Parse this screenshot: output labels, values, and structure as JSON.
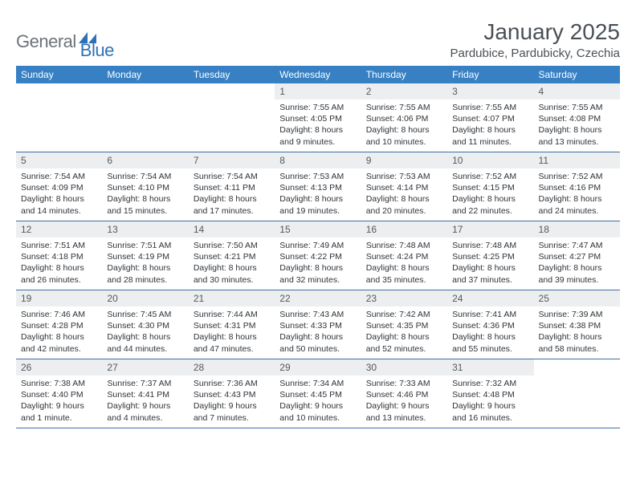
{
  "logo": {
    "general": "General",
    "blue": "Blue"
  },
  "title": "January 2025",
  "location": "Pardubice, Pardubicky, Czechia",
  "colors": {
    "header_bg": "#3680c3",
    "header_text": "#ffffff",
    "date_bg": "#edeeef",
    "border": "#3b6fa5",
    "logo_gray": "#6c737a",
    "logo_blue": "#2f71b8"
  },
  "day_names": [
    "Sunday",
    "Monday",
    "Tuesday",
    "Wednesday",
    "Thursday",
    "Friday",
    "Saturday"
  ],
  "weeks": [
    [
      null,
      null,
      null,
      {
        "n": "1",
        "sr": "7:55 AM",
        "ss": "4:05 PM",
        "dl": "8 hours and 9 minutes."
      },
      {
        "n": "2",
        "sr": "7:55 AM",
        "ss": "4:06 PM",
        "dl": "8 hours and 10 minutes."
      },
      {
        "n": "3",
        "sr": "7:55 AM",
        "ss": "4:07 PM",
        "dl": "8 hours and 11 minutes."
      },
      {
        "n": "4",
        "sr": "7:55 AM",
        "ss": "4:08 PM",
        "dl": "8 hours and 13 minutes."
      }
    ],
    [
      {
        "n": "5",
        "sr": "7:54 AM",
        "ss": "4:09 PM",
        "dl": "8 hours and 14 minutes."
      },
      {
        "n": "6",
        "sr": "7:54 AM",
        "ss": "4:10 PM",
        "dl": "8 hours and 15 minutes."
      },
      {
        "n": "7",
        "sr": "7:54 AM",
        "ss": "4:11 PM",
        "dl": "8 hours and 17 minutes."
      },
      {
        "n": "8",
        "sr": "7:53 AM",
        "ss": "4:13 PM",
        "dl": "8 hours and 19 minutes."
      },
      {
        "n": "9",
        "sr": "7:53 AM",
        "ss": "4:14 PM",
        "dl": "8 hours and 20 minutes."
      },
      {
        "n": "10",
        "sr": "7:52 AM",
        "ss": "4:15 PM",
        "dl": "8 hours and 22 minutes."
      },
      {
        "n": "11",
        "sr": "7:52 AM",
        "ss": "4:16 PM",
        "dl": "8 hours and 24 minutes."
      }
    ],
    [
      {
        "n": "12",
        "sr": "7:51 AM",
        "ss": "4:18 PM",
        "dl": "8 hours and 26 minutes."
      },
      {
        "n": "13",
        "sr": "7:51 AM",
        "ss": "4:19 PM",
        "dl": "8 hours and 28 minutes."
      },
      {
        "n": "14",
        "sr": "7:50 AM",
        "ss": "4:21 PM",
        "dl": "8 hours and 30 minutes."
      },
      {
        "n": "15",
        "sr": "7:49 AM",
        "ss": "4:22 PM",
        "dl": "8 hours and 32 minutes."
      },
      {
        "n": "16",
        "sr": "7:48 AM",
        "ss": "4:24 PM",
        "dl": "8 hours and 35 minutes."
      },
      {
        "n": "17",
        "sr": "7:48 AM",
        "ss": "4:25 PM",
        "dl": "8 hours and 37 minutes."
      },
      {
        "n": "18",
        "sr": "7:47 AM",
        "ss": "4:27 PM",
        "dl": "8 hours and 39 minutes."
      }
    ],
    [
      {
        "n": "19",
        "sr": "7:46 AM",
        "ss": "4:28 PM",
        "dl": "8 hours and 42 minutes."
      },
      {
        "n": "20",
        "sr": "7:45 AM",
        "ss": "4:30 PM",
        "dl": "8 hours and 44 minutes."
      },
      {
        "n": "21",
        "sr": "7:44 AM",
        "ss": "4:31 PM",
        "dl": "8 hours and 47 minutes."
      },
      {
        "n": "22",
        "sr": "7:43 AM",
        "ss": "4:33 PM",
        "dl": "8 hours and 50 minutes."
      },
      {
        "n": "23",
        "sr": "7:42 AM",
        "ss": "4:35 PM",
        "dl": "8 hours and 52 minutes."
      },
      {
        "n": "24",
        "sr": "7:41 AM",
        "ss": "4:36 PM",
        "dl": "8 hours and 55 minutes."
      },
      {
        "n": "25",
        "sr": "7:39 AM",
        "ss": "4:38 PM",
        "dl": "8 hours and 58 minutes."
      }
    ],
    [
      {
        "n": "26",
        "sr": "7:38 AM",
        "ss": "4:40 PM",
        "dl": "9 hours and 1 minute."
      },
      {
        "n": "27",
        "sr": "7:37 AM",
        "ss": "4:41 PM",
        "dl": "9 hours and 4 minutes."
      },
      {
        "n": "28",
        "sr": "7:36 AM",
        "ss": "4:43 PM",
        "dl": "9 hours and 7 minutes."
      },
      {
        "n": "29",
        "sr": "7:34 AM",
        "ss": "4:45 PM",
        "dl": "9 hours and 10 minutes."
      },
      {
        "n": "30",
        "sr": "7:33 AM",
        "ss": "4:46 PM",
        "dl": "9 hours and 13 minutes."
      },
      {
        "n": "31",
        "sr": "7:32 AM",
        "ss": "4:48 PM",
        "dl": "9 hours and 16 minutes."
      },
      null
    ]
  ],
  "labels": {
    "sunrise": "Sunrise:",
    "sunset": "Sunset:",
    "daylight": "Daylight:"
  }
}
